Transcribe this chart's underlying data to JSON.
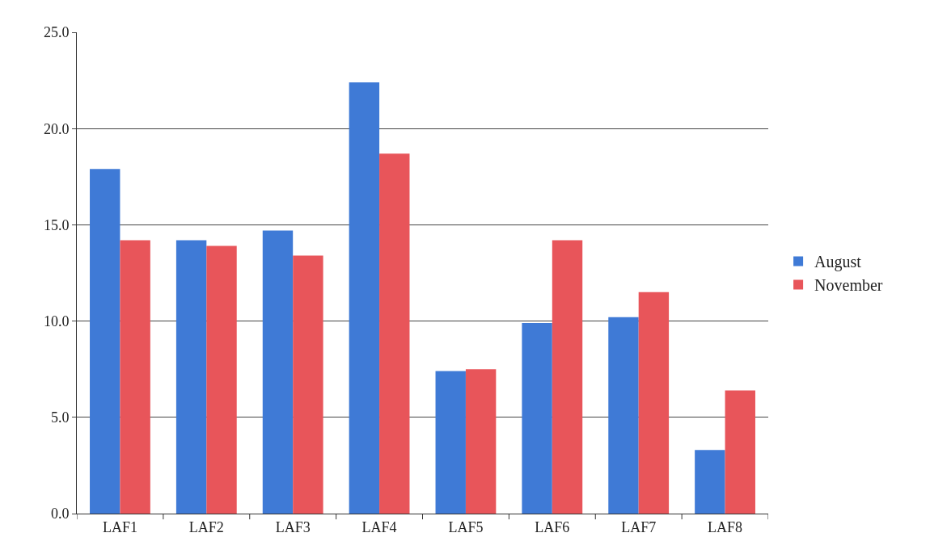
{
  "chart_data": {
    "type": "bar",
    "categories": [
      "LAF1",
      "LAF2",
      "LAF3",
      "LAF4",
      "LAF5",
      "LAF6",
      "LAF7",
      "LAF8"
    ],
    "series": [
      {
        "name": "August",
        "color": "#3f7ad6",
        "values": [
          17.9,
          14.2,
          14.7,
          22.4,
          7.4,
          9.9,
          10.2,
          3.3
        ]
      },
      {
        "name": "November",
        "color": "#e8555a",
        "values": [
          14.2,
          13.9,
          13.4,
          18.7,
          7.5,
          14.2,
          11.5,
          6.4
        ]
      }
    ],
    "ylim": [
      0,
      25
    ],
    "yticks": [
      {
        "value": 0,
        "label": "0.0"
      },
      {
        "value": 5,
        "label": "5.0"
      },
      {
        "value": 10,
        "label": "10.0"
      },
      {
        "value": 15,
        "label": "15.0"
      },
      {
        "value": 20,
        "label": "20.0"
      },
      {
        "value": 25,
        "label": "25.0"
      }
    ],
    "grid": "y",
    "legend": "right"
  }
}
